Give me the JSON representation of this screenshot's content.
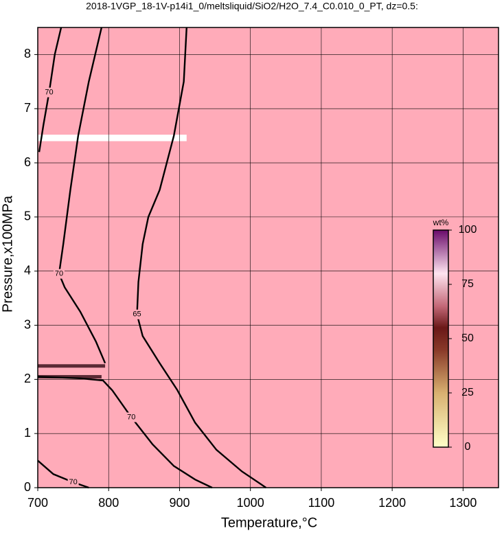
{
  "chart_data": {
    "type": "contour",
    "title": "2018-1VGP_18-1V-p14i1_0/meltsliquid/SiO2/H2O_7.4_C0.010_0_PT, dz=0.5:",
    "x_label": "Temperature,°C",
    "y_label": "Pressure,x100MPa",
    "xlim": [
      700,
      1350
    ],
    "ylim": [
      0,
      8.5
    ],
    "xticks": [
      700,
      800,
      900,
      1000,
      1100,
      1200,
      1300
    ],
    "yticks": [
      0,
      1,
      2,
      3,
      4,
      5,
      6,
      7,
      8
    ],
    "grid": true,
    "fill_color": "#ffabb9",
    "contours": [
      {
        "level": 70,
        "x": [
          790,
          772,
          757,
          746,
          736,
          730,
          738,
          760,
          782,
          795
        ],
        "y": [
          8.5,
          7.5,
          6.5,
          5.5,
          4.5,
          3.95,
          3.7,
          3.25,
          2.7,
          2.3
        ]
      },
      {
        "level": 65,
        "x": [
          910,
          906,
          892,
          872,
          856,
          848,
          842,
          840,
          848,
          872,
          897,
          922,
          952,
          988,
          1022
        ],
        "y": [
          8.5,
          7.5,
          6.5,
          5.5,
          5.0,
          4.5,
          3.8,
          3.2,
          2.8,
          2.3,
          1.8,
          1.2,
          0.7,
          0.3,
          0
        ]
      },
      {
        "level": 70,
        "x": [
          700,
          760,
          792,
          805,
          832,
          862,
          892,
          922,
          946
        ],
        "y": [
          2.05,
          2.02,
          1.98,
          1.8,
          1.3,
          0.8,
          0.4,
          0.15,
          0
        ]
      },
      {
        "level": 70,
        "x": [
          700,
          722,
          750,
          772
        ],
        "y": [
          0.5,
          0.25,
          0.1,
          0
        ]
      },
      {
        "level": 70,
        "x": [
          733,
          724,
          716,
          708,
          702
        ],
        "y": [
          8.5,
          8.0,
          7.3,
          6.7,
          6.2
        ]
      }
    ],
    "colorbar": {
      "label": "wt%",
      "lim": [
        0,
        100
      ],
      "ticks": [
        0,
        25,
        50,
        75,
        100
      ]
    }
  }
}
